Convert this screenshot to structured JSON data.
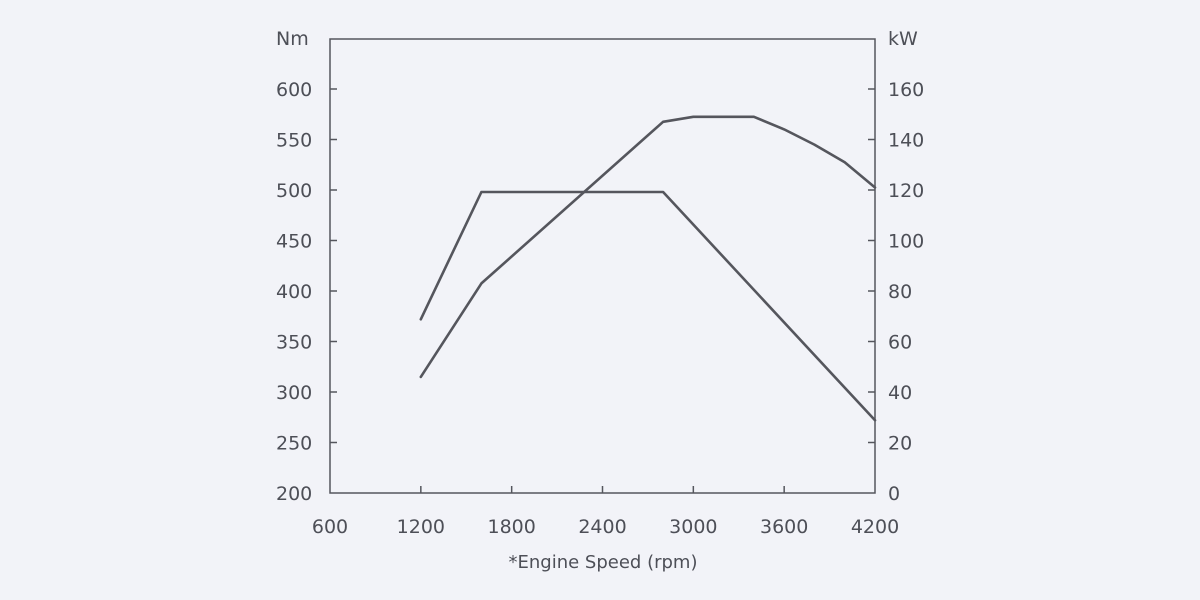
{
  "chart_data": {
    "type": "line",
    "background": "#f2f3f8",
    "line_color": "#55565d",
    "axis_color": "#55565d",
    "text_color": "#4d4f57",
    "xlabel": "*Engine Speed (rpm)",
    "ylabel_left": "Nm",
    "ylabel_right": "kW",
    "xlim": [
      600,
      4200
    ],
    "ylim_left": [
      200,
      650
    ],
    "ylim_right": [
      0,
      180
    ],
    "x_ticks": [
      600,
      1200,
      1800,
      2400,
      3000,
      3600,
      4200
    ],
    "y_left_ticks": [
      200,
      250,
      300,
      350,
      400,
      450,
      500,
      550,
      600
    ],
    "y_right_ticks": [
      0,
      20,
      40,
      60,
      80,
      100,
      120,
      140,
      160
    ],
    "grid": false,
    "series": [
      {
        "axis": "left",
        "x": [
          1200,
          1600,
          2800,
          4200
        ],
        "y": [
          372,
          498,
          498,
          272
        ]
      },
      {
        "axis": "right",
        "x": [
          1200,
          1600,
          2800,
          3000,
          3400,
          3600,
          3800,
          4000,
          4200
        ],
        "y": [
          46,
          83,
          147,
          149,
          149,
          144,
          138,
          131,
          121
        ]
      }
    ]
  }
}
